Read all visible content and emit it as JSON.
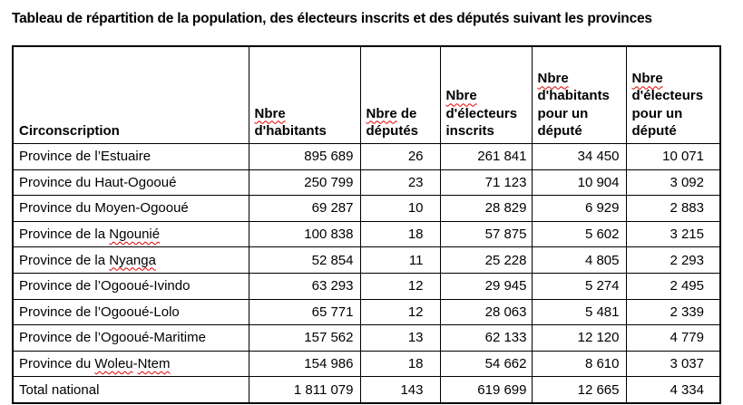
{
  "title": "Tableau de répartition de la population, des électeurs inscrits et des députés suivant les provinces",
  "spellcheck_color": "#e00000",
  "border_color": "#000000",
  "table": {
    "columns": [
      {
        "label": "Circonscription",
        "parts": [
          {
            "text": "Circonscription",
            "misspelled": false
          }
        ]
      },
      {
        "label": "Nbre d'habitants",
        "parts": [
          {
            "text": "Nbre",
            "misspelled": true,
            "br": true
          },
          {
            "text": "d'habitants",
            "misspelled": false
          }
        ]
      },
      {
        "label": "Nbre de députés",
        "parts": [
          {
            "text": "Nbre",
            "misspelled": true
          },
          {
            "text": " de",
            "misspelled": false,
            "br": true
          },
          {
            "text": "députés",
            "misspelled": false
          }
        ]
      },
      {
        "label": "Nbre d'électeurs inscrits",
        "parts": [
          {
            "text": "Nbre",
            "misspelled": true,
            "br": true
          },
          {
            "text": "d'électeurs",
            "misspelled": false,
            "br": true
          },
          {
            "text": "inscrits",
            "misspelled": false
          }
        ]
      },
      {
        "label": "Nbre d'habitants pour un député",
        "parts": [
          {
            "text": "Nbre",
            "misspelled": true,
            "br": true
          },
          {
            "text": "d'habitants",
            "misspelled": false,
            "br": true
          },
          {
            "text": "pour un",
            "misspelled": false,
            "br": true
          },
          {
            "text": "député",
            "misspelled": false
          }
        ]
      },
      {
        "label": "Nbre d'électeurs pour un député",
        "parts": [
          {
            "text": "Nbre",
            "misspelled": true,
            "br": true
          },
          {
            "text": "d'électeurs",
            "misspelled": false,
            "br": true
          },
          {
            "text": "pour un",
            "misspelled": false,
            "br": true
          },
          {
            "text": "député",
            "misspelled": false
          }
        ]
      }
    ],
    "rows": [
      {
        "name": "Province de l’Estuaire",
        "name_parts": [
          {
            "text": "Province de l’Estuaire",
            "misspelled": false
          }
        ],
        "values": [
          "895 689",
          "26",
          "261 841",
          "34 450",
          "10 071"
        ]
      },
      {
        "name": "Province du Haut-Ogooué",
        "name_parts": [
          {
            "text": "Province du Haut-Ogooué",
            "misspelled": false
          }
        ],
        "values": [
          "250 799",
          "23",
          "71 123",
          "10 904",
          "3 092"
        ]
      },
      {
        "name": "Province du Moyen-Ogooué",
        "name_parts": [
          {
            "text": "Province du Moyen-Ogooué",
            "misspelled": false
          }
        ],
        "values": [
          "69 287",
          "10",
          "28 829",
          "6 929",
          "2 883"
        ]
      },
      {
        "name": "Province de la Ngounié",
        "name_parts": [
          {
            "text": "Province de la ",
            "misspelled": false
          },
          {
            "text": "Ngounié",
            "misspelled": true
          }
        ],
        "values": [
          "100 838",
          "18",
          "57 875",
          "5 602",
          "3 215"
        ]
      },
      {
        "name": "Province de la Nyanga",
        "name_parts": [
          {
            "text": "Province de la ",
            "misspelled": false
          },
          {
            "text": "Nyanga",
            "misspelled": true
          }
        ],
        "values": [
          "52 854",
          "11",
          "25 228",
          "4 805",
          "2 293"
        ]
      },
      {
        "name": "Province de l’Ogooué-Ivindo",
        "name_parts": [
          {
            "text": "Province de l’Ogooué-Ivindo",
            "misspelled": false
          }
        ],
        "values": [
          "63 293",
          "12",
          "29 945",
          "5 274",
          "2 495"
        ]
      },
      {
        "name": "Province de l’Ogooué-Lolo",
        "name_parts": [
          {
            "text": "Province de l’Ogooué-Lolo",
            "misspelled": false
          }
        ],
        "values": [
          "65 771",
          "12",
          "28 063",
          "5 481",
          "2 339"
        ]
      },
      {
        "name": "Province de l’Ogooué-Maritime",
        "name_parts": [
          {
            "text": "Province de l’Ogooué-Maritime",
            "misspelled": false
          }
        ],
        "values": [
          "157 562",
          "13",
          "62 133",
          "12 120",
          "4 779"
        ]
      },
      {
        "name": "Province du Woleu-Ntem",
        "name_parts": [
          {
            "text": "Province du ",
            "misspelled": false
          },
          {
            "text": "Woleu",
            "misspelled": true
          },
          {
            "text": "-",
            "misspelled": false
          },
          {
            "text": "Ntem",
            "misspelled": true
          }
        ],
        "values": [
          "154 986",
          "18",
          "54 662",
          "8 610",
          "3 037"
        ]
      },
      {
        "name": "Total national",
        "name_parts": [
          {
            "text": "Total national",
            "misspelled": false
          }
        ],
        "values": [
          "1 811 079",
          "143",
          "619 699",
          "12 665",
          "4 334"
        ]
      }
    ]
  }
}
